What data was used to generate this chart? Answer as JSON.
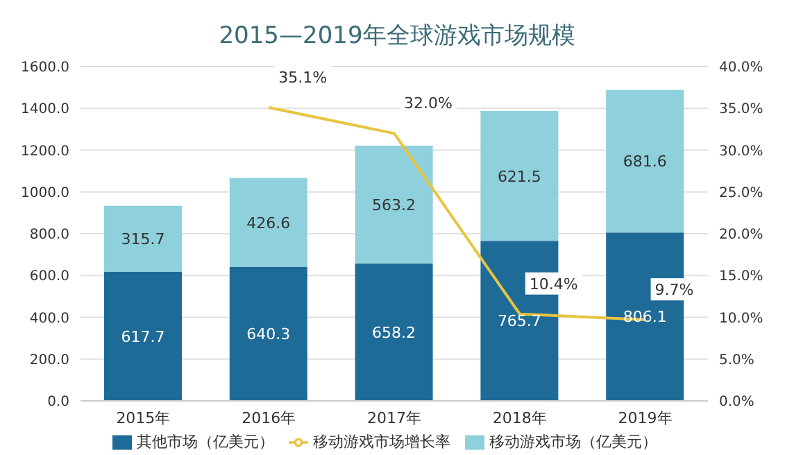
{
  "chart_data": {
    "type": "bar",
    "title": "2015—2019年全球游戏市场规模",
    "categories": [
      "2015年",
      "2016年",
      "2017年",
      "2018年",
      "2019年"
    ],
    "stacked": true,
    "data_labels": true,
    "series": [
      {
        "name": "其他市场（亿美元）",
        "color": "#1f6b97",
        "values": [
          617.7,
          640.3,
          658.2,
          765.7,
          806.1
        ]
      },
      {
        "name": "移动游戏市场（亿美元）",
        "color": "#8ed0dc",
        "values": [
          315.7,
          426.6,
          563.2,
          621.5,
          681.6
        ]
      },
      {
        "name": "移动游戏市场增长率",
        "type": "line",
        "axis": "y2",
        "color": "#e8c440",
        "values": [
          null,
          35.1,
          32.0,
          10.4,
          9.7
        ],
        "value_labels": [
          null,
          "35.1%",
          "32.0%",
          "10.4%",
          "9.7%"
        ]
      }
    ],
    "ylim": [
      0,
      1600
    ],
    "yticks": [
      {
        "value": 0,
        "label": "0.0"
      },
      {
        "value": 200,
        "label": "200.0"
      },
      {
        "value": 400,
        "label": "400.0"
      },
      {
        "value": 600,
        "label": "600.0"
      },
      {
        "value": 800,
        "label": "800.0"
      },
      {
        "value": 1000,
        "label": "1000.0"
      },
      {
        "value": 1200,
        "label": "1200.0"
      },
      {
        "value": 1400,
        "label": "1400.0"
      },
      {
        "value": 1600,
        "label": "1600.0"
      }
    ],
    "y2lim": [
      0,
      40
    ],
    "y2ticks": [
      {
        "value": 0,
        "label": "0.0%"
      },
      {
        "value": 5,
        "label": "5.0%"
      },
      {
        "value": 10,
        "label": "10.0%"
      },
      {
        "value": 15,
        "label": "15.0%"
      },
      {
        "value": 20,
        "label": "20.0%"
      },
      {
        "value": 25,
        "label": "25.0%"
      },
      {
        "value": 30,
        "label": "30.0%"
      },
      {
        "value": 35,
        "label": "35.0%"
      },
      {
        "value": 40,
        "label": "40.0%"
      }
    ],
    "grid": "y",
    "legend": "bottom",
    "marker": "none",
    "line_style": "solid"
  }
}
